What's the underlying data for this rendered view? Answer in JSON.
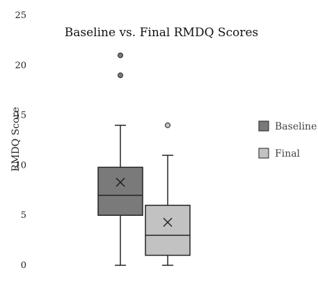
{
  "chart_data": {
    "type": "box",
    "title": "Baseline vs. Final RMDQ Scores",
    "xlabel": "",
    "ylabel": "RMDQ Score",
    "ylim": [
      0,
      25
    ],
    "yticks": [
      "0",
      "5",
      "10",
      "15",
      "20",
      "25"
    ],
    "grid": false,
    "legend_position": "right",
    "series": [
      {
        "name": "Baseline",
        "color": "#7a7a7a",
        "min": 0,
        "q1": 5,
        "median": 7,
        "q3": 9.8,
        "max": 14,
        "mean": 8.3,
        "outliers": [
          19,
          21
        ]
      },
      {
        "name": "Final",
        "color": "#c2c2c2",
        "min": 0,
        "q1": 1,
        "median": 3,
        "q3": 6,
        "max": 11,
        "mean": 4.3,
        "outliers": [
          14
        ]
      }
    ]
  }
}
